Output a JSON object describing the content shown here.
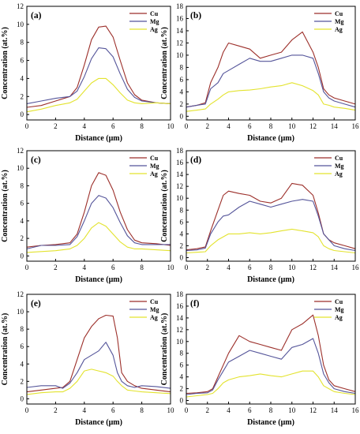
{
  "figure": {
    "colors": {
      "Cu": "#9c2f2a",
      "Mg": "#55559a",
      "Ag": "#e3e32e"
    },
    "legend_position": "top-right"
  },
  "chart_data": [
    {
      "type": "line",
      "panel_label": "(a)",
      "xlabel": "Distance (μm)",
      "ylabel": "Concentration (at.%)",
      "xlim": [
        0,
        10
      ],
      "ylim": [
        -0.6,
        12
      ],
      "xticks": [
        0,
        2,
        4,
        6,
        8,
        10
      ],
      "yticks": [
        0,
        2,
        4,
        6,
        8,
        10,
        12
      ],
      "series": [
        {
          "name": "Cu",
          "x": [
            0,
            1,
            2,
            3,
            3.5,
            4,
            4.5,
            5,
            5.5,
            6,
            6.5,
            7,
            7.5,
            8,
            9,
            10
          ],
          "y": [
            0.8,
            1.0,
            1.5,
            2.0,
            3.0,
            5.5,
            8.3,
            9.7,
            9.8,
            8.6,
            6.0,
            3.5,
            2.2,
            1.6,
            1.3,
            1.2
          ]
        },
        {
          "name": "Mg",
          "x": [
            0,
            1,
            2,
            3,
            3.5,
            4,
            4.5,
            5,
            5.5,
            6,
            6.5,
            7,
            7.5,
            8,
            9,
            10
          ],
          "y": [
            1.2,
            1.5,
            1.8,
            2.0,
            2.6,
            4.2,
            6.2,
            7.4,
            7.3,
            6.4,
            4.5,
            2.8,
            1.9,
            1.5,
            1.3,
            1.2
          ]
        },
        {
          "name": "Ag",
          "x": [
            0,
            1,
            2,
            3,
            3.5,
            4,
            4.5,
            5,
            5.5,
            6,
            6.5,
            7,
            7.5,
            8,
            9,
            10
          ],
          "y": [
            0.3,
            0.6,
            1.0,
            1.3,
            1.7,
            2.6,
            3.5,
            4.0,
            4.0,
            3.3,
            2.4,
            1.6,
            1.3,
            1.2,
            1.3,
            1.2
          ]
        }
      ]
    },
    {
      "type": "line",
      "panel_label": "(b)",
      "xlabel": "Distance (μm)",
      "ylabel": "Concentration (at.%)",
      "xlim": [
        0,
        16
      ],
      "ylim": [
        -0.6,
        18
      ],
      "xticks": [
        0,
        2,
        4,
        6,
        8,
        10,
        12,
        14,
        16
      ],
      "yticks": [
        0,
        2,
        4,
        6,
        8,
        10,
        12,
        14,
        16,
        18
      ],
      "series": [
        {
          "name": "Cu",
          "x": [
            0,
            1,
            1.8,
            2.3,
            3,
            3.5,
            4,
            5,
            6,
            7,
            8,
            9,
            10,
            11,
            12,
            12.5,
            13,
            13.5,
            14,
            15,
            16
          ],
          "y": [
            1.5,
            1.8,
            2.2,
            5.5,
            8.0,
            10.5,
            12.0,
            11.5,
            11.0,
            9.5,
            10.0,
            10.5,
            12.5,
            13.8,
            10.5,
            8.0,
            4.5,
            3.5,
            3.0,
            2.5,
            2.0
          ]
        },
        {
          "name": "Mg",
          "x": [
            0,
            1,
            1.8,
            2.3,
            3,
            3.5,
            4,
            5,
            6,
            7,
            8,
            9,
            10,
            11,
            12,
            12.5,
            13,
            13.5,
            14,
            15,
            16
          ],
          "y": [
            1.5,
            1.8,
            2.0,
            4.5,
            5.5,
            7.0,
            7.5,
            8.5,
            9.5,
            9.0,
            9.0,
            9.5,
            10.0,
            10.0,
            9.5,
            7.0,
            4.0,
            3.0,
            2.5,
            2.0,
            1.5
          ]
        },
        {
          "name": "Ag",
          "x": [
            0,
            1,
            1.8,
            2.3,
            3,
            3.5,
            4,
            5,
            6,
            7,
            8,
            9,
            10,
            11,
            12,
            12.5,
            13,
            13.5,
            14,
            15,
            16
          ],
          "y": [
            0.8,
            1.0,
            1.2,
            2.0,
            2.8,
            3.5,
            4.0,
            4.2,
            4.3,
            4.5,
            4.8,
            5.0,
            5.5,
            5.0,
            4.2,
            3.5,
            2.0,
            1.8,
            1.5,
            1.3,
            1.0
          ]
        }
      ]
    },
    {
      "type": "line",
      "panel_label": "(c)",
      "xlabel": "Distance (μm)",
      "ylabel": "Concentration (at.%)",
      "xlim": [
        0,
        10
      ],
      "ylim": [
        -0.6,
        12
      ],
      "xticks": [
        0,
        2,
        4,
        6,
        8,
        10
      ],
      "yticks": [
        0,
        2,
        4,
        6,
        8,
        10,
        12
      ],
      "series": [
        {
          "name": "Cu",
          "x": [
            0,
            1,
            2,
            3,
            3.5,
            4,
            4.5,
            5,
            5.5,
            6,
            6.5,
            7,
            7.5,
            8,
            9,
            10
          ],
          "y": [
            1.0,
            1.2,
            1.3,
            1.5,
            2.5,
            5.0,
            8.0,
            9.5,
            9.2,
            7.5,
            5.0,
            3.0,
            1.8,
            1.5,
            1.4,
            1.2
          ]
        },
        {
          "name": "Mg",
          "x": [
            0,
            1,
            2,
            3,
            3.5,
            4,
            4.5,
            5,
            5.5,
            6,
            6.5,
            7,
            7.5,
            8,
            9,
            10
          ],
          "y": [
            0.8,
            1.2,
            1.2,
            1.3,
            2.2,
            4.0,
            6.0,
            6.9,
            6.6,
            5.5,
            3.8,
            2.3,
            1.5,
            1.3,
            1.3,
            1.3
          ]
        },
        {
          "name": "Ag",
          "x": [
            0,
            1,
            2,
            3,
            3.5,
            4,
            4.5,
            5,
            5.5,
            6,
            6.5,
            7,
            7.5,
            8,
            9,
            10
          ],
          "y": [
            0.4,
            0.5,
            0.6,
            0.8,
            1.2,
            2.0,
            3.2,
            3.8,
            3.4,
            2.5,
            1.6,
            1.0,
            0.8,
            0.8,
            0.7,
            0.6
          ]
        }
      ]
    },
    {
      "type": "line",
      "panel_label": "(d)",
      "xlabel": "Distance (μm)",
      "ylabel": "Concentration (at.%)",
      "xlim": [
        0,
        16
      ],
      "ylim": [
        -0.6,
        18
      ],
      "xticks": [
        0,
        2,
        4,
        6,
        8,
        10,
        12,
        14,
        16
      ],
      "yticks": [
        0,
        2,
        4,
        6,
        8,
        10,
        12,
        14,
        16,
        18
      ],
      "series": [
        {
          "name": "Cu",
          "x": [
            0,
            1,
            1.8,
            2.3,
            3,
            3.5,
            4,
            5,
            6,
            7,
            8,
            9,
            10,
            11,
            12,
            12.5,
            13,
            13.5,
            14,
            15,
            16
          ],
          "y": [
            1.3,
            1.5,
            1.8,
            4.5,
            8.0,
            10.5,
            11.2,
            10.8,
            10.5,
            9.5,
            9.2,
            10.0,
            12.5,
            12.2,
            10.5,
            7.5,
            4.0,
            3.0,
            2.5,
            2.0,
            1.5
          ]
        },
        {
          "name": "Mg",
          "x": [
            0,
            1,
            1.8,
            2.3,
            3,
            3.5,
            4,
            5,
            6,
            7,
            8,
            9,
            10,
            11,
            12,
            12.5,
            13,
            13.5,
            14,
            15,
            16
          ],
          "y": [
            1.2,
            1.3,
            1.6,
            4.0,
            6.0,
            7.0,
            7.2,
            8.5,
            9.5,
            9.0,
            8.5,
            9.0,
            9.5,
            9.8,
            9.5,
            7.0,
            4.0,
            3.0,
            2.0,
            1.5,
            1.2
          ]
        },
        {
          "name": "Ag",
          "x": [
            0,
            1,
            1.8,
            2.3,
            3,
            3.5,
            4,
            5,
            6,
            7,
            8,
            9,
            10,
            11,
            12,
            12.5,
            13,
            13.5,
            14,
            15,
            16
          ],
          "y": [
            0.8,
            0.9,
            1.0,
            2.0,
            3.0,
            3.5,
            4.0,
            4.0,
            4.2,
            4.0,
            4.2,
            4.5,
            4.8,
            4.5,
            4.2,
            3.5,
            2.0,
            1.5,
            1.2,
            1.0,
            0.8
          ]
        }
      ]
    },
    {
      "type": "line",
      "panel_label": "(e)",
      "xlabel": "Distance (μm)",
      "ylabel": "Concentration (at.%)",
      "xlim": [
        0,
        10
      ],
      "ylim": [
        -0.6,
        12
      ],
      "xticks": [
        0,
        2,
        4,
        6,
        8,
        10
      ],
      "yticks": [
        0,
        2,
        4,
        6,
        8,
        10,
        12
      ],
      "series": [
        {
          "name": "Cu",
          "x": [
            0,
            1,
            2,
            2.5,
            3,
            3.5,
            4,
            4.5,
            5,
            5.5,
            6,
            6.3,
            6.6,
            7,
            7.5,
            8,
            9,
            10
          ],
          "y": [
            0.8,
            1.0,
            1.2,
            1.3,
            2.0,
            4.5,
            7.0,
            8.3,
            9.2,
            9.6,
            9.5,
            7.0,
            3.0,
            2.0,
            1.5,
            1.2,
            1.0,
            0.8
          ]
        },
        {
          "name": "Mg",
          "x": [
            0,
            1,
            2,
            2.5,
            3,
            3.5,
            4,
            4.5,
            5,
            5.5,
            6,
            6.3,
            6.6,
            7,
            7.5,
            8,
            9,
            10
          ],
          "y": [
            1.3,
            1.5,
            1.5,
            1.2,
            1.8,
            3.0,
            4.5,
            5.0,
            5.5,
            6.5,
            5.0,
            3.0,
            2.0,
            1.5,
            1.3,
            1.5,
            1.4,
            1.2
          ]
        },
        {
          "name": "Ag",
          "x": [
            0,
            1,
            2,
            2.5,
            3,
            3.5,
            4,
            4.5,
            5,
            5.5,
            6,
            6.3,
            6.6,
            7,
            7.5,
            8,
            9,
            10
          ],
          "y": [
            0.5,
            0.7,
            0.8,
            0.8,
            1.2,
            2.0,
            3.2,
            3.4,
            3.2,
            3.0,
            2.6,
            2.0,
            1.5,
            1.0,
            0.9,
            0.8,
            0.7,
            0.6
          ]
        }
      ]
    },
    {
      "type": "line",
      "panel_label": "(f)",
      "xlabel": "Distance (μm)",
      "ylabel": "Concentration (at.%)",
      "xlim": [
        0,
        16
      ],
      "ylim": [
        -0.6,
        18
      ],
      "xticks": [
        0,
        2,
        4,
        6,
        8,
        10,
        12,
        14,
        16
      ],
      "yticks": [
        0,
        2,
        4,
        6,
        8,
        10,
        12,
        14,
        16,
        18
      ],
      "series": [
        {
          "name": "Cu",
          "x": [
            0,
            1,
            2,
            2.5,
            3,
            3.5,
            4,
            5,
            6,
            7,
            8,
            9,
            10,
            11,
            12,
            12.5,
            13,
            13.5,
            14,
            15,
            16
          ],
          "y": [
            1.2,
            1.3,
            1.5,
            2.0,
            4.0,
            6.0,
            8.0,
            11.0,
            10.0,
            9.5,
            9.0,
            8.5,
            12.0,
            13.0,
            14.5,
            11.0,
            6.0,
            3.5,
            2.5,
            2.0,
            1.5
          ]
        },
        {
          "name": "Mg",
          "x": [
            0,
            1,
            2,
            2.5,
            3,
            3.5,
            4,
            5,
            6,
            7,
            8,
            9,
            10,
            11,
            12,
            12.5,
            13,
            13.5,
            14,
            15,
            16
          ],
          "y": [
            1.0,
            1.2,
            1.3,
            1.8,
            3.5,
            5.0,
            6.5,
            7.5,
            8.5,
            8.0,
            7.5,
            7.0,
            9.0,
            9.5,
            10.5,
            8.0,
            4.5,
            3.0,
            2.0,
            1.5,
            1.2
          ]
        },
        {
          "name": "Ag",
          "x": [
            0,
            1,
            2,
            2.5,
            3,
            3.5,
            4,
            5,
            6,
            7,
            8,
            9,
            10,
            11,
            12,
            12.5,
            13,
            13.5,
            14,
            15,
            16
          ],
          "y": [
            0.6,
            0.8,
            1.0,
            1.2,
            2.0,
            3.0,
            3.5,
            4.0,
            4.2,
            4.5,
            4.2,
            4.0,
            4.5,
            5.0,
            5.0,
            4.0,
            2.5,
            2.0,
            1.5,
            1.2,
            1.0
          ]
        }
      ]
    }
  ]
}
